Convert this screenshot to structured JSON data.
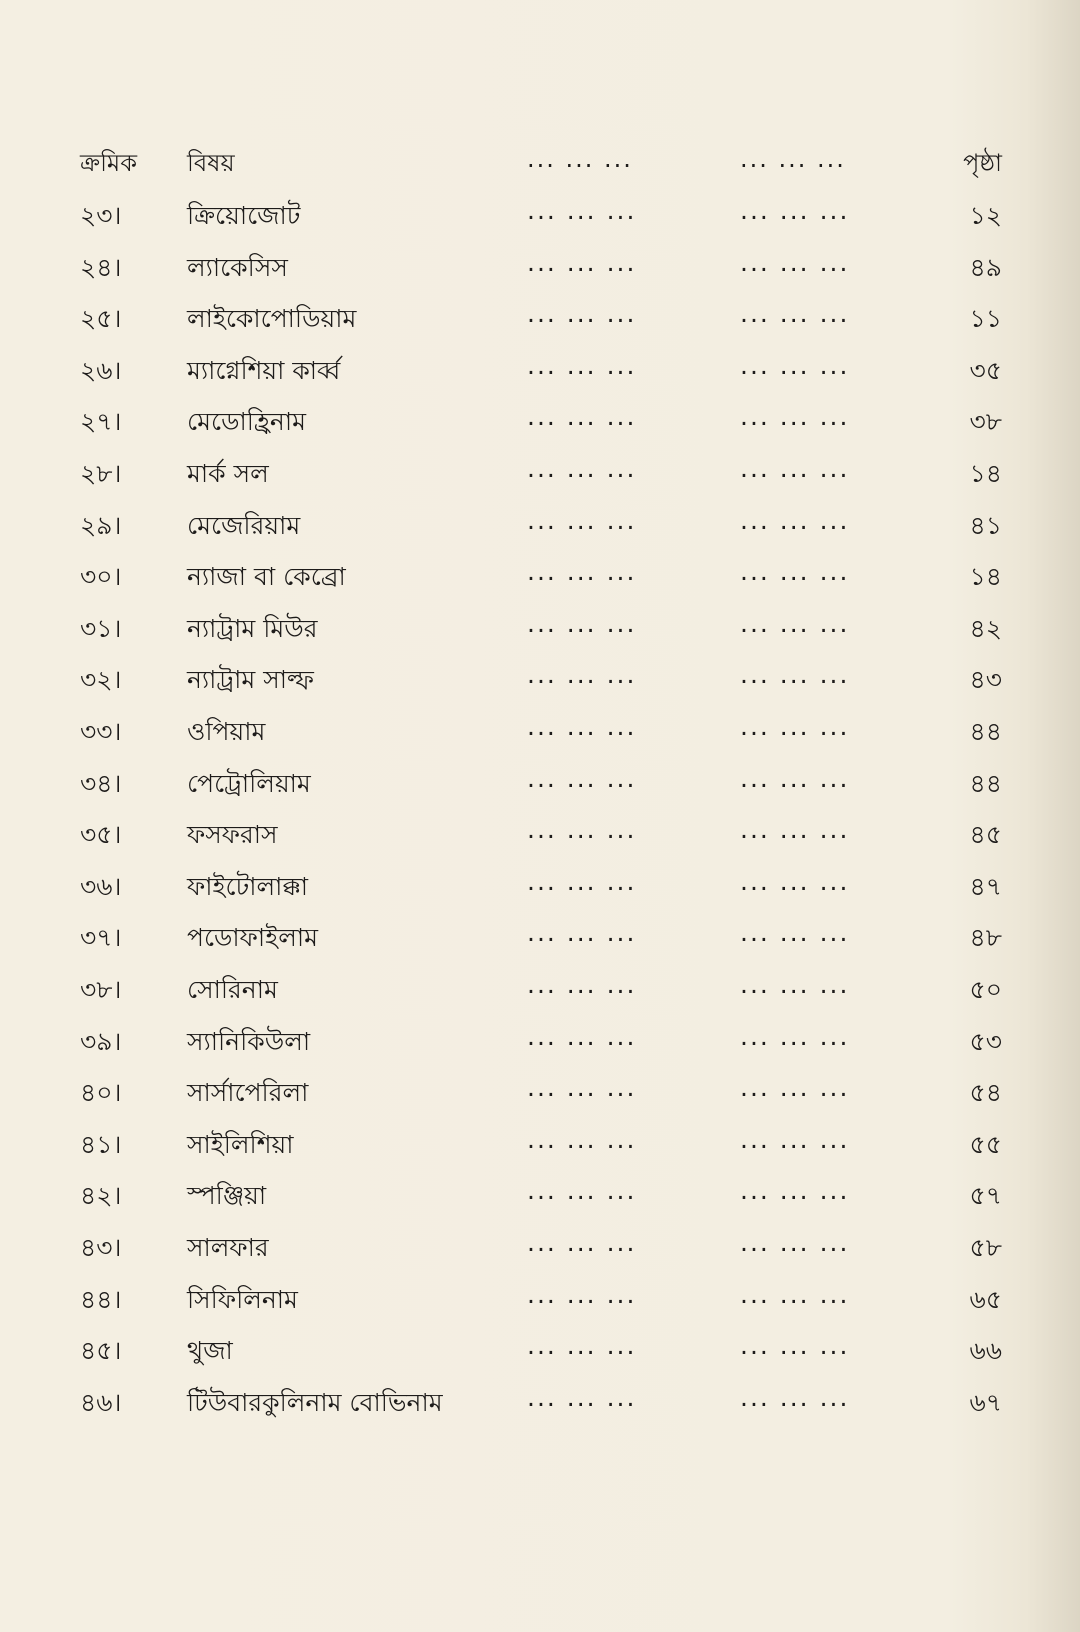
{
  "header": {
    "serial": "ক্রমিক",
    "subject": "বিষয়",
    "dots": "... ... ...",
    "page": "পৃষ্ঠা"
  },
  "dots": "... ... ...",
  "entries": [
    {
      "serial": "২৩।",
      "name": "ক্রিয়োজোট",
      "page": "১২"
    },
    {
      "serial": "২৪।",
      "name": "ল্যাকেসিস",
      "page": "৪৯"
    },
    {
      "serial": "২৫।",
      "name": "লাইকোপোডিয়াম",
      "page": "১১"
    },
    {
      "serial": "২৬।",
      "name": "ম্যাগ্নেশিয়া কার্ব্ব",
      "page": "৩৫"
    },
    {
      "serial": "২৭।",
      "name": "মেডোহ্রিনাম",
      "page": "৩৮"
    },
    {
      "serial": "২৮।",
      "name": "মার্ক সল",
      "page": "১৪"
    },
    {
      "serial": "২৯।",
      "name": "মেজেরিয়াম",
      "page": "৪১"
    },
    {
      "serial": "৩০।",
      "name": "ন্যাজা বা কেব্রো",
      "page": "১৪"
    },
    {
      "serial": "৩১।",
      "name": "ন্যাট্রাম মিউর",
      "page": "৪২"
    },
    {
      "serial": "৩২।",
      "name": "ন্যাট্রাম সাল্ফ",
      "page": "৪৩"
    },
    {
      "serial": "৩৩।",
      "name": "ওপিয়াম",
      "page": "৪৪"
    },
    {
      "serial": "৩৪।",
      "name": "পেট্রোলিয়াম",
      "page": "৪৪"
    },
    {
      "serial": "৩৫।",
      "name": "ফসফরাস",
      "page": "৪৫"
    },
    {
      "serial": "৩৬।",
      "name": "ফাইটোলাক্কা",
      "page": "৪৭"
    },
    {
      "serial": "৩৭।",
      "name": "পডোফাইলাম",
      "page": "৪৮"
    },
    {
      "serial": "৩৮।",
      "name": "সোরিনাম",
      "page": "৫০"
    },
    {
      "serial": "৩৯।",
      "name": "স্যানিকিউলা",
      "page": "৫৩"
    },
    {
      "serial": "৪০।",
      "name": "সার্সাপেরিলা",
      "page": "৫৪"
    },
    {
      "serial": "৪১।",
      "name": "সাইলিশিয়া",
      "page": "৫৫"
    },
    {
      "serial": "৪২।",
      "name": "স্পঞ্জিয়া",
      "page": "৫৭"
    },
    {
      "serial": "৪৩।",
      "name": "সালফার",
      "page": "৫৮"
    },
    {
      "serial": "৪৪।",
      "name": "সিফিলিনাম",
      "page": "৬৫"
    },
    {
      "serial": "৪৫।",
      "name": "থুজা",
      "page": "৬৬"
    },
    {
      "serial": "৪৬।",
      "name": "টিউবারকুলিনাম বোভিনাম",
      "page": "৬৭"
    }
  ]
}
